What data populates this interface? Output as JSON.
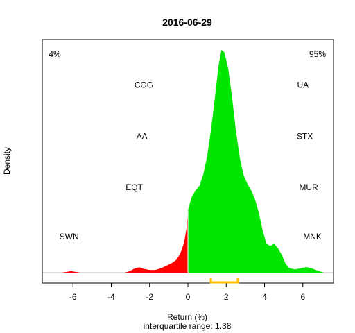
{
  "chart_data": {
    "type": "area",
    "title": "2016-06-29",
    "xlabel": "Return (%)",
    "ylabel": "Density",
    "subtitle": "interquartile range: 1.38",
    "xlim": [
      -7.6,
      7.6
    ],
    "ylim": [
      0,
      1.0
    ],
    "x_ticks": [
      "-6",
      "-4",
      "-2",
      "0",
      "2",
      "4",
      "6"
    ],
    "pct_negative": "4%",
    "pct_positive": "95%",
    "iqr": [
      1.2,
      2.6
    ],
    "colors": {
      "negative": "#ff0000",
      "positive": "#00e600",
      "iqr": "#ffbf00",
      "pct_negative": "#d00000",
      "pct_positive": "#00a000",
      "baseline": "#bebebe"
    },
    "density": [
      [
        -6.6,
        0.0
      ],
      [
        -6.3,
        0.004
      ],
      [
        -6.1,
        0.007
      ],
      [
        -5.9,
        0.004
      ],
      [
        -5.6,
        0.0
      ],
      [
        -4.0,
        0.0
      ],
      [
        -3.3,
        0.0
      ],
      [
        -3.0,
        0.008
      ],
      [
        -2.8,
        0.018
      ],
      [
        -2.55,
        0.024
      ],
      [
        -2.3,
        0.017
      ],
      [
        -2.0,
        0.012
      ],
      [
        -1.7,
        0.012
      ],
      [
        -1.4,
        0.02
      ],
      [
        -1.1,
        0.032
      ],
      [
        -0.8,
        0.045
      ],
      [
        -0.6,
        0.058
      ],
      [
        -0.4,
        0.085
      ],
      [
        -0.2,
        0.135
      ],
      [
        -0.05,
        0.21
      ],
      [
        0.0,
        0.28
      ],
      [
        0.2,
        0.34
      ],
      [
        0.4,
        0.37
      ],
      [
        0.6,
        0.39
      ],
      [
        0.8,
        0.44
      ],
      [
        1.0,
        0.52
      ],
      [
        1.2,
        0.64
      ],
      [
        1.4,
        0.78
      ],
      [
        1.6,
        0.93
      ],
      [
        1.75,
        1.0
      ],
      [
        1.9,
        0.99
      ],
      [
        2.1,
        0.92
      ],
      [
        2.3,
        0.79
      ],
      [
        2.5,
        0.64
      ],
      [
        2.7,
        0.52
      ],
      [
        2.9,
        0.44
      ],
      [
        3.1,
        0.4
      ],
      [
        3.3,
        0.37
      ],
      [
        3.5,
        0.33
      ],
      [
        3.7,
        0.27
      ],
      [
        3.9,
        0.19
      ],
      [
        4.1,
        0.13
      ],
      [
        4.3,
        0.12
      ],
      [
        4.5,
        0.13
      ],
      [
        4.7,
        0.11
      ],
      [
        4.9,
        0.08
      ],
      [
        5.1,
        0.04
      ],
      [
        5.3,
        0.02
      ],
      [
        5.6,
        0.015
      ],
      [
        5.9,
        0.02
      ],
      [
        6.2,
        0.025
      ],
      [
        6.5,
        0.018
      ],
      [
        6.8,
        0.008
      ],
      [
        7.1,
        0.0
      ]
    ],
    "annotations": [
      {
        "text": "SWN",
        "x": -6.2,
        "y": 0.15
      },
      {
        "text": "EQT",
        "x": -2.8,
        "y": 0.37
      },
      {
        "text": "AA",
        "x": -2.4,
        "y": 0.6
      },
      {
        "text": "COG",
        "x": -2.3,
        "y": 0.83
      },
      {
        "text": "MNK",
        "x": 6.5,
        "y": 0.15
      },
      {
        "text": "MUR",
        "x": 6.3,
        "y": 0.37
      },
      {
        "text": "STX",
        "x": 6.1,
        "y": 0.6
      },
      {
        "text": "UA",
        "x": 6.0,
        "y": 0.83
      }
    ]
  }
}
